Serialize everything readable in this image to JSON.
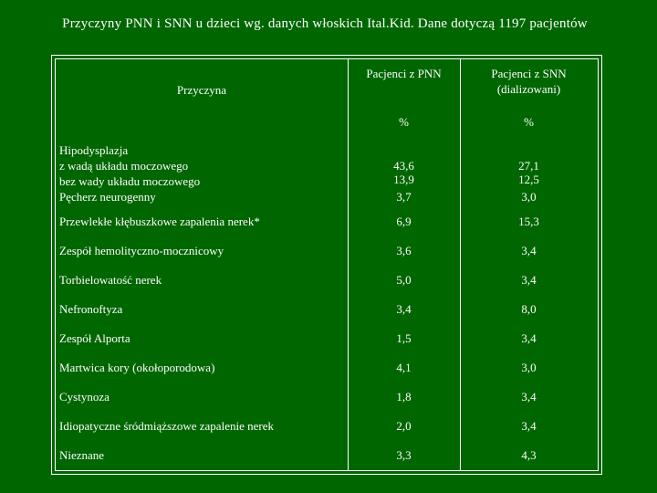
{
  "title": "Przyczyny PNN i SNN u dzieci wg. danych włoskich Ital.Kid. Dane dotyczą 1197 pacjentów",
  "table": {
    "header": {
      "cause": "Przyczyna",
      "col1": "Pacjenci z PNN",
      "col2_line1": "Pacjenci z SNN",
      "col2_line2": "(dializowani)",
      "unit1": "%",
      "unit2": "%"
    },
    "group": {
      "labels": [
        "Hipodysplazja",
        "z wadą układu moczowego",
        "bez wady układu moczowego",
        "Pęcherz neurogenny"
      ],
      "pnn": [
        "43,6",
        "13,9",
        "3,7"
      ],
      "snn": [
        "27,1",
        "12,5",
        "3,0"
      ]
    },
    "rows": [
      {
        "cause": "Przewlekłe kłębuszkowe zapalenia nerek*",
        "pnn": "6,9",
        "snn": "15,3"
      },
      {
        "cause": "Zespół hemolityczno-mocznicowy",
        "pnn": "3,6",
        "snn": "3,4"
      },
      {
        "cause": "Torbielowatość nerek",
        "pnn": "5,0",
        "snn": "3,4"
      },
      {
        "cause": "Nefronoftyza",
        "pnn": "3,4",
        "snn": "8,0"
      },
      {
        "cause": "Zespół Alporta",
        "pnn": "1,5",
        "snn": "3,4"
      },
      {
        "cause": "Martwica kory (okołoporodowa)",
        "pnn": "4,1",
        "snn": "3,0"
      },
      {
        "cause": "Cystynoza",
        "pnn": "1,8",
        "snn": "3,4"
      },
      {
        "cause": "Idiopatyczne śródmiąższowe zapalenie nerek",
        "pnn": "2,0",
        "snn": "3,4"
      },
      {
        "cause": "Nieznane",
        "pnn": "3,3",
        "snn": "4,3"
      }
    ]
  }
}
